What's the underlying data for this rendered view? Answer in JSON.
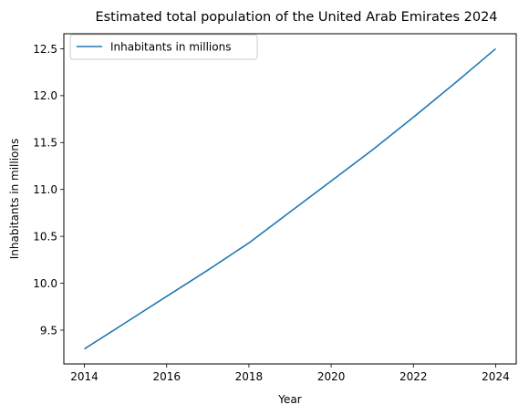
{
  "chart_data": {
    "type": "line",
    "title": "Estimated total population of the United Arab Emirates 2024",
    "xlabel": "Year",
    "ylabel": "Inhabitants in millions",
    "x": [
      2014,
      2015,
      2016,
      2017,
      2018,
      2019,
      2020,
      2021,
      2022,
      2023,
      2024
    ],
    "series": [
      {
        "name": "Inhabitants in millions",
        "color": "#1f77b4",
        "values": [
          9.3,
          9.58,
          9.86,
          10.14,
          10.43,
          10.76,
          11.09,
          11.42,
          11.77,
          12.13,
          12.5
        ]
      }
    ],
    "xlim": [
      2013.5,
      2024.5
    ],
    "ylim": [
      9.14,
      12.66
    ],
    "xticks": [
      2014,
      2016,
      2018,
      2020,
      2022,
      2024
    ],
    "yticks": [
      9.5,
      10.0,
      10.5,
      11.0,
      11.5,
      12.0,
      12.5
    ],
    "ytick_labels": [
      "9.5",
      "10.0",
      "10.5",
      "11.0",
      "11.5",
      "12.0",
      "12.5"
    ],
    "grid": false,
    "legend_position": "top-left"
  }
}
